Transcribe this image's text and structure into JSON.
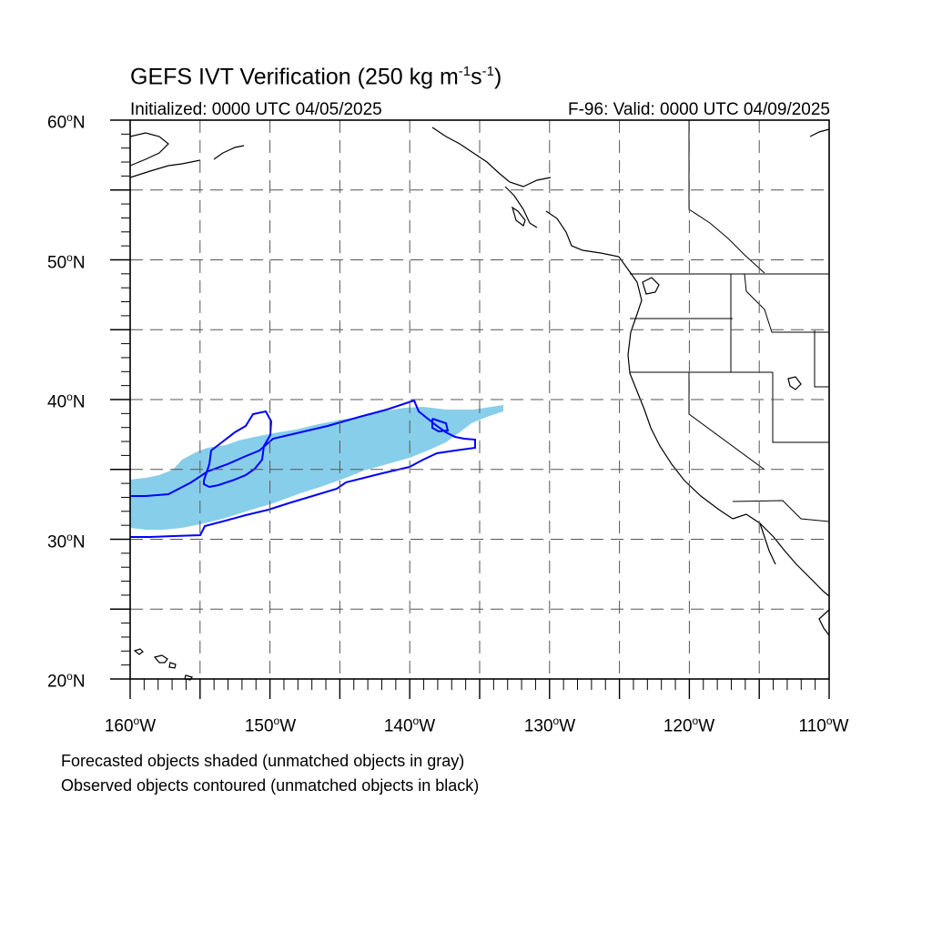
{
  "title": {
    "prefix": "GEFS IVT Verification (250 kg m",
    "sup1": "-1",
    "mid": "s",
    "sup2": "-1",
    "suffix": ")"
  },
  "initialized": "Initialized: 0000 UTC 04/05/2025",
  "valid": "F-96: Valid: 0000 UTC 04/09/2025",
  "deg": "o",
  "lat_labels": [
    {
      "num": "60",
      "hem": "N"
    },
    {
      "num": "50",
      "hem": "N"
    },
    {
      "num": "40",
      "hem": "N"
    },
    {
      "num": "30",
      "hem": "N"
    },
    {
      "num": "20",
      "hem": "N"
    }
  ],
  "lon_labels": [
    {
      "num": "160",
      "hem": "W"
    },
    {
      "num": "150",
      "hem": "W"
    },
    {
      "num": "140",
      "hem": "W"
    },
    {
      "num": "130",
      "hem": "W"
    },
    {
      "num": "120",
      "hem": "W"
    },
    {
      "num": "110",
      "hem": "W"
    }
  ],
  "notes": {
    "forecast": "Forecasted objects shaded (unmatched objects in gray)",
    "observed": "Observed objects contoured (unmatched objects in black)"
  },
  "colors": {
    "forecast_fill": "#87ceeb",
    "observed_contour": "#0000ff",
    "coast": "#000000",
    "grid": "#555555"
  },
  "map": {
    "lon_range": [
      -160,
      -110
    ],
    "lat_range": [
      20,
      60
    ],
    "grid_spacing_deg": 5
  }
}
